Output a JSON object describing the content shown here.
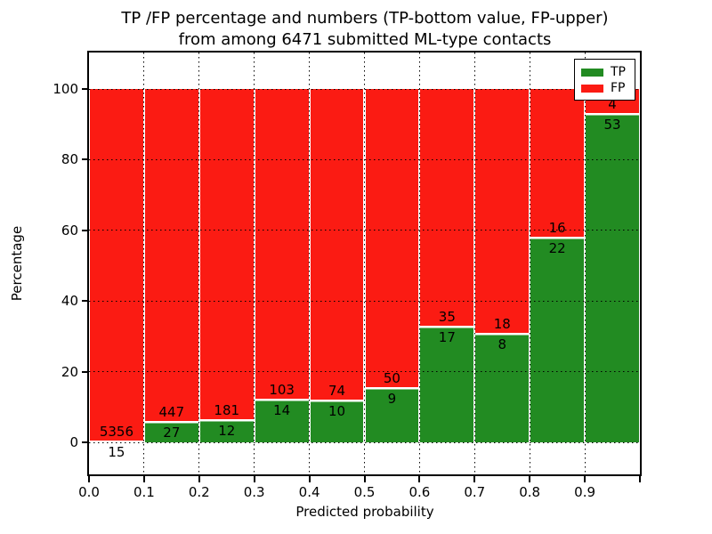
{
  "title": {
    "line1": "TP /FP percentage and numbers (TP-bottom value, FP-upper)",
    "line2": "from among 6471 submitted ML-type contacts"
  },
  "axes": {
    "xlabel": "Predicted probability",
    "ylabel": "Percentage",
    "x_tick_labels": [
      "0.0",
      "0.1",
      "0.2",
      "0.3",
      "0.4",
      "0.5",
      "0.6",
      "0.7",
      "0.8",
      "0.9"
    ],
    "y_tick_labels": [
      "0",
      "20",
      "40",
      "60",
      "80",
      "100"
    ],
    "y_tick_values": [
      0,
      20,
      40,
      60,
      80,
      100
    ]
  },
  "legend": {
    "items": [
      {
        "label": "TP",
        "color": "#228b22"
      },
      {
        "label": "FP",
        "color": "#fb1b13"
      }
    ]
  },
  "colors": {
    "tp": "#228b22",
    "fp": "#fb1b13",
    "grid": "#000000",
    "axis": "#000000",
    "background": "#ffffff"
  },
  "chart_data": {
    "type": "bar",
    "stacked": true,
    "normalized": "each bar stacks TP%+FP% to 100",
    "title": "TP /FP percentage and numbers (TP-bottom value, FP-upper) from among 6471 submitted ML-type contacts",
    "xlabel": "Predicted probability",
    "ylabel": "Percentage",
    "xlim": [
      0.0,
      1.0
    ],
    "ylim": [
      -9,
      110
    ],
    "grid": "dotted",
    "legend_position": "upper right",
    "bins": [
      "0.0-0.1",
      "0.1-0.2",
      "0.2-0.3",
      "0.3-0.4",
      "0.4-0.5",
      "0.5-0.6",
      "0.6-0.7",
      "0.7-0.8",
      "0.8-0.9",
      "0.9-1.0"
    ],
    "series": [
      {
        "name": "TP",
        "color": "#228b22",
        "counts": [
          15,
          27,
          12,
          14,
          10,
          9,
          17,
          8,
          22,
          53
        ]
      },
      {
        "name": "FP",
        "color": "#fb1b13",
        "counts": [
          5356,
          447,
          181,
          103,
          74,
          50,
          35,
          18,
          16,
          4
        ]
      }
    ],
    "tp_percent": [
      0.28,
      5.7,
      6.22,
      11.97,
      11.9,
      15.25,
      32.69,
      30.77,
      57.89,
      92.98
    ],
    "total_contacts": 6471
  }
}
